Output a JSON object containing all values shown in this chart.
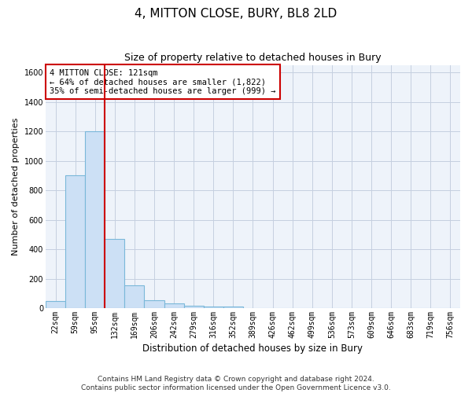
{
  "title": "4, MITTON CLOSE, BURY, BL8 2LD",
  "subtitle": "Size of property relative to detached houses in Bury",
  "xlabel": "Distribution of detached houses by size in Bury",
  "ylabel": "Number of detached properties",
  "property_label": "4 MITTON CLOSE: 121sqm",
  "annotation_line1": "← 64% of detached houses are smaller (1,822)",
  "annotation_line2": "35% of semi-detached houses are larger (999) →",
  "footer_line1": "Contains HM Land Registry data © Crown copyright and database right 2024.",
  "footer_line2": "Contains public sector information licensed under the Open Government Licence v3.0.",
  "bin_labels": [
    "22sqm",
    "59sqm",
    "95sqm",
    "132sqm",
    "169sqm",
    "206sqm",
    "242sqm",
    "279sqm",
    "316sqm",
    "352sqm",
    "389sqm",
    "426sqm",
    "462sqm",
    "499sqm",
    "536sqm",
    "573sqm",
    "609sqm",
    "646sqm",
    "683sqm",
    "719sqm",
    "756sqm"
  ],
  "bin_values": [
    50,
    900,
    1200,
    470,
    155,
    55,
    30,
    18,
    12,
    12,
    0,
    0,
    0,
    0,
    0,
    0,
    0,
    0,
    0,
    0,
    0
  ],
  "bar_color": "#cce0f5",
  "bar_edge_color": "#7ab8d9",
  "vline_x": 2.5,
  "vline_color": "#cc0000",
  "ylim": [
    0,
    1650
  ],
  "yticks": [
    0,
    200,
    400,
    600,
    800,
    1000,
    1200,
    1400,
    1600
  ],
  "background_color": "#ffffff",
  "plot_bg_color": "#eef3fa",
  "grid_color": "#c5cfe0",
  "annotation_box_color": "#cc0000",
  "title_fontsize": 11,
  "subtitle_fontsize": 9,
  "xlabel_fontsize": 8.5,
  "ylabel_fontsize": 8,
  "tick_fontsize": 7,
  "annot_fontsize": 7.5,
  "footer_fontsize": 6.5
}
